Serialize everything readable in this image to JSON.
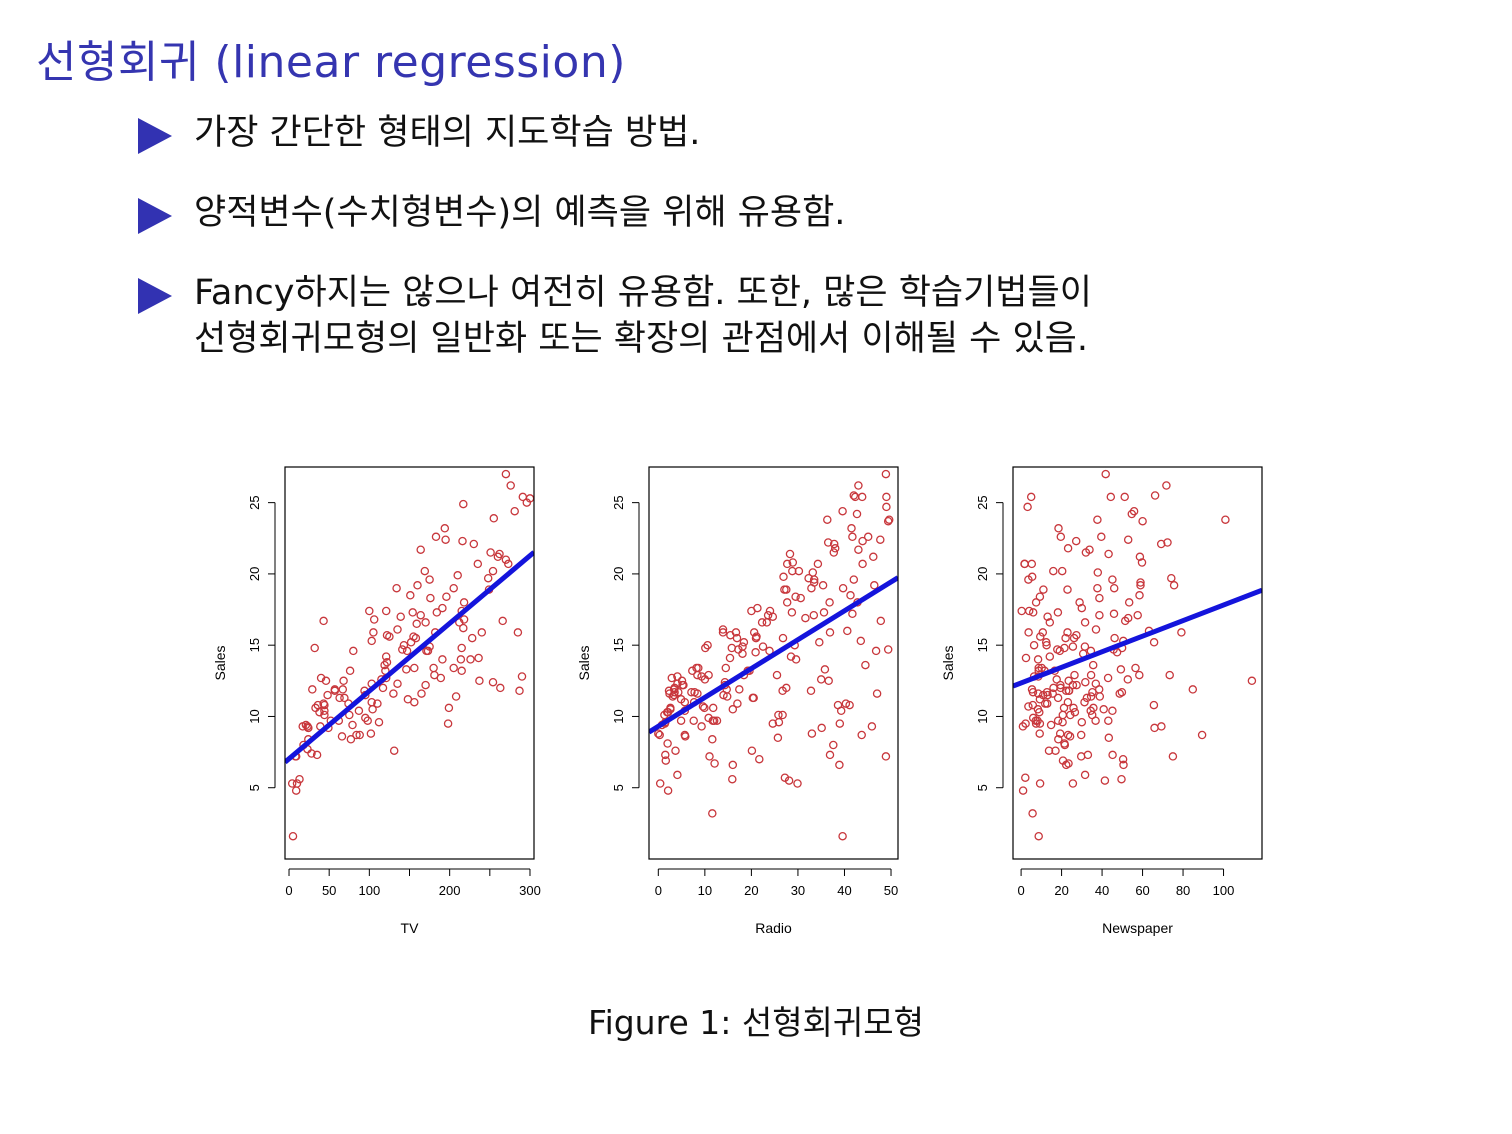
{
  "slide": {
    "title": "선형회귀 (linear regression)",
    "bullets": [
      {
        "lines": [
          "가장 간단한 형태의 지도학습 방법."
        ]
      },
      {
        "lines": [
          "양적변수(수치형변수)의 예측을 위해 유용함."
        ]
      },
      {
        "lines": [
          "Fancy하지는 않으나 여전히 유용함. 또한, 많은 학습기법들이",
          "선형회귀모형의 일반화 또는 확장의 관점에서 이해될 수 있음."
        ]
      }
    ],
    "caption": "Figure 1: 선형회귀모형"
  },
  "colors": {
    "title": "#3535b0",
    "marker": "#3232b2",
    "points": "#c8373c",
    "fit_line": "#1414dc"
  },
  "chart_data": [
    {
      "type": "scatter",
      "xlabel": "TV",
      "ylabel": "Sales",
      "xlim": [
        -5,
        305
      ],
      "ylim": [
        0,
        27.5
      ],
      "xticks": [
        0,
        50,
        100,
        150,
        200,
        250,
        300
      ],
      "xtick_labels": [
        "0",
        "50",
        "100",
        "",
        "200",
        "",
        "300"
      ],
      "yticks": [
        5,
        10,
        15,
        20,
        25
      ],
      "fit_line": {
        "intercept": 7.03,
        "slope": 0.0475
      },
      "x": [
        230,
        44,
        17,
        151,
        181,
        9,
        57,
        120,
        9,
        199,
        66,
        215,
        24,
        98,
        205,
        195,
        68,
        281,
        69,
        147,
        218,
        237,
        13,
        228,
        62,
        263,
        143,
        240,
        249,
        104,
        262,
        29,
        112,
        121,
        198,
        290,
        4,
        8,
        75,
        165,
        125,
        131,
        141,
        23,
        48,
        291,
        33,
        266,
        95,
        215,
        270,
        63,
        260,
        80,
        46,
        251,
        139,
        169,
        217,
        205,
        164,
        173,
        121,
        287,
        255,
        102,
        38,
        159,
        110,
        196,
        175,
        183,
        273,
        285,
        218,
        170,
        121,
        57,
        39,
        88,
        5,
        175,
        180,
        122,
        103,
        94,
        84,
        43,
        212,
        184,
        40,
        270,
        77,
        300,
        32,
        95,
        155,
        106,
        191,
        115,
        74,
        296,
        215,
        276,
        191,
        182,
        134,
        156,
        214,
        21,
        146,
        235,
        254,
        152,
        10,
        52,
        28,
        24,
        67,
        76,
        35,
        226,
        156,
        254,
        105,
        100,
        248,
        189,
        210,
        135,
        194,
        23,
        117,
        24,
        36,
        154,
        44,
        135,
        148,
        103,
        208,
        87,
        158,
        49,
        18,
        122,
        217,
        164,
        170,
        79,
        160,
        119,
        44,
        130,
        216,
        171,
        103,
        176,
        236,
        43
      ],
      "y": [
        22.1,
        10.4,
        9.3,
        18.5,
        12.9,
        7.2,
        11.8,
        13.2,
        4.8,
        10.6,
        8.6,
        17.4,
        9.2,
        9.7,
        19,
        22.4,
        12.5,
        24.4,
        11.3,
        14.6,
        18,
        12.5,
        5.6,
        15.5,
        9.7,
        12,
        15,
        15.9,
        18.9,
        10.5,
        21.4,
        11.9,
        9.6,
        17.4,
        9.5,
        12.8,
        5.3,
        7.2,
        10.1,
        11.6,
        15.6,
        7.6,
        14.7,
        7.7,
        11.5,
        25.4,
        10.6,
        16.7,
        9.9,
        14.8,
        27,
        11.3,
        21.2,
        14.6,
        12.5,
        21.5,
        17,
        20.2,
        24.9,
        13.4,
        21.7,
        14.6,
        12.7,
        11.8,
        23.9,
        8.8,
        10.3,
        16.5,
        10.9,
        18.4,
        19.6,
        22.6,
        20.7,
        15.9,
        16.8,
        12.2,
        14.2,
        11.9,
        9.3,
        8.7,
        1.6,
        14.9,
        13.4,
        13.8,
        12.3,
        11.8,
        8.7,
        10.9,
        16.6,
        17.3,
        12.7,
        21,
        8.4,
        25.3,
        14.8,
        11.5,
        15.6,
        16.8,
        17.6,
        12.6,
        10.9,
        25,
        13.2,
        26.2,
        14,
        15.9,
        19,
        11,
        14,
        9.4,
        13.3,
        20.7,
        12.4,
        15.2,
        5.3,
        9.7,
        7.4,
        9.2,
        11.9,
        13.2,
        7.3,
        14,
        13.4,
        20.2,
        15.9,
        17.4,
        19.7,
        12.7,
        19.9,
        12.3,
        23.2,
        9.3,
        12,
        8.4,
        10.8,
        17.3,
        10.8,
        16.1,
        11.2,
        15.3,
        11.4,
        10.4,
        15.5,
        9.2,
        8,
        15.7,
        16.2,
        17.1,
        16.6,
        9.4,
        19.2,
        13.6,
        10.1,
        11.6,
        22.3,
        14.6,
        11,
        18.3,
        14.1,
        16.7
      ]
    },
    {
      "type": "scatter",
      "xlabel": "Radio",
      "ylabel": "Sales",
      "xlim": [
        -2,
        51.5
      ],
      "ylim": [
        0,
        27.5
      ],
      "xticks": [
        0,
        10,
        20,
        30,
        40,
        50
      ],
      "xtick_labels": [
        "0",
        "10",
        "20",
        "30",
        "40",
        "50"
      ],
      "yticks": [
        5,
        10,
        15,
        20,
        25
      ],
      "fit_line": {
        "intercept": 9.31,
        "slope": 0.2025
      },
      "x": [
        37.8,
        39.3,
        45.9,
        41.3,
        10.8,
        48.9,
        32.8,
        19.6,
        2.1,
        2.6,
        5.8,
        24,
        35.1,
        7.6,
        32.9,
        47.7,
        36.6,
        39.6,
        20.5,
        23.9,
        27.7,
        5.1,
        15.9,
        16.9,
        12.6,
        3.5,
        29.3,
        16.7,
        27.1,
        16,
        28.3,
        17.4,
        1.5,
        20,
        1.4,
        4.1,
        43.8,
        49.4,
        26.7,
        37.7,
        22.3,
        33.4,
        27.7,
        8.4,
        25.7,
        22.5,
        9.9,
        41.5,
        15.8,
        11.7,
        3.1,
        9.6,
        41.7,
        46.2,
        28.8,
        49.4,
        28.1,
        19.2,
        49.6,
        29.5,
        2,
        42.7,
        15.5,
        29.6,
        42.8,
        9.3,
        24.6,
        14.5,
        27.5,
        43.9,
        30.6,
        14.3,
        33,
        5.7,
        24.6,
        43.7,
        1.6,
        28.5,
        29.9,
        7.7,
        26.7,
        4.1,
        20.3,
        44.5,
        43,
        18.4,
        27.5,
        40.6,
        25.5,
        47.8,
        4.9,
        1.5,
        33.5,
        36.5,
        14,
        31.6,
        3.5,
        21,
        42.3,
        41.7,
        4.3,
        36.3,
        10.1,
        17.2,
        34.3,
        46.4,
        11,
        0.3,
        0.4,
        26.9,
        8.2,
        38,
        15.4,
        20.6,
        46.8,
        35,
        14.3,
        0.8,
        36.9,
        16,
        26.8,
        21.7,
        2.4,
        34.6,
        32.3,
        11.8,
        38.9,
        0,
        49,
        12,
        39.6,
        2.9,
        27.2,
        33.5,
        38.6,
        47,
        39,
        28.9,
        25.9,
        43.9,
        17,
        35.4,
        33.2,
        5.7,
        14.8,
        1.9,
        7.3,
        49,
        40.3,
        25.8,
        13.9,
        8.4,
        23.3,
        39.7,
        21.1,
        11.6,
        43.5,
        1.3,
        36.9,
        18.4,
        18.1,
        35.8,
        18.1,
        36.8,
        14.7,
        3.4,
        37.6,
        5.2,
        23.6,
        10.6,
        11.6,
        20.9,
        20.1,
        7.1,
        3.4,
        48.9,
        30.2,
        7.8,
        2.3,
        10,
        2.6,
        5.4,
        5.7,
        43,
        21.3,
        45.1,
        2.1,
        28.7,
        13.9,
        12.1,
        41.1,
        10.8,
        4.1,
        42,
        35.6,
        3.7,
        4.9,
        9.3,
        42,
        8.6
      ],
      "y": [
        22.1,
        10.4,
        9.3,
        18.5,
        12.9,
        7.2,
        11.8,
        13.2,
        4.8,
        10.6,
        8.6,
        17.4,
        9.2,
        9.7,
        19,
        22.4,
        12.5,
        24.4,
        11.3,
        14.6,
        18,
        12.5,
        5.6,
        15.5,
        9.7,
        12,
        15,
        15.9,
        18.9,
        10.5,
        21.4,
        11.9,
        9.6,
        17.4,
        9.5,
        12.8,
        25.4,
        14.7,
        10.1,
        21.5,
        16.6,
        17.1,
        20.7,
        12.9,
        8.5,
        14.9,
        10.6,
        23.2,
        14.8,
        9.7,
        11.4,
        10.7,
        22.6,
        21.2,
        20.2,
        23.7,
        5.5,
        13.2,
        23.8,
        18.4,
        8.1,
        24.2,
        15.7,
        14,
        18,
        9.3,
        9.5,
        13.4,
        18.9,
        22.3,
        18.3,
        12.4,
        8.8,
        11,
        17,
        8.7,
        6.9,
        14.2,
        5.3,
        11,
        11.8,
        12.3,
        11.3,
        13.6,
        21.7,
        15.2,
        12,
        16,
        12.9,
        16.7,
        11.2,
        7.3,
        19.4,
        22.2,
        11.5,
        16.9,
        11.7,
        15.5,
        25.4,
        17.2,
        11.7,
        23.8,
        14.8,
        14.7,
        20.7,
        19.2,
        7.2,
        8.7,
        5.3,
        19.8,
        13.4,
        21.8,
        14.1,
        15.9,
        14.6,
        12.6,
        12.2,
        9.4,
        15.9,
        6.6,
        15.5,
        7,
        11.6,
        15.2,
        19.7,
        10.6,
        6.6,
        8.8,
        24.7,
        9.7,
        1.6,
        12.7,
        5.7,
        19.6,
        10.8,
        11.6,
        9.5,
        20.8,
        9.6,
        20.7,
        10.9,
        19.2,
        20.1,
        10.4,
        11.4,
        10.3,
        13.2,
        25.4,
        10.9,
        10.1,
        16.1,
        11.6,
        16.6,
        19,
        15.6,
        3.2,
        15.3,
        10.1,
        7.3,
        12.9,
        14.4,
        13.3,
        14.9,
        18,
        11.9,
        11.9,
        8,
        12.2,
        17.1,
        15,
        8.4,
        14.5,
        7.6,
        11.7,
        11.5,
        27,
        20.2,
        11.7,
        11.8,
        12.6,
        10.5,
        12.2,
        8.7,
        26.2,
        17.6,
        22.6,
        10.3,
        17.3,
        15.9,
        6.7,
        10.8,
        9.9,
        5.9,
        19.6,
        17.3,
        7.6,
        9.7,
        12.8,
        25.5,
        13.4
      ]
    },
    {
      "type": "scatter",
      "xlabel": "Newspaper",
      "ylabel": "Sales",
      "xlim": [
        -4,
        119
      ],
      "ylim": [
        0,
        27.5
      ],
      "xticks": [
        0,
        20,
        40,
        60,
        80,
        100
      ],
      "xtick_labels": [
        "0",
        "20",
        "40",
        "60",
        "80",
        "100"
      ],
      "yticks": [
        5,
        10,
        15,
        20,
        25
      ],
      "fit_line": {
        "intercept": 12.35,
        "slope": 0.0547
      },
      "x": [
        69.2,
        45.1,
        69.3,
        58.5,
        58.4,
        75,
        23.5,
        11.6,
        1,
        21.2,
        24.2,
        4,
        65.9,
        7.2,
        46,
        52.9,
        114,
        55.8,
        18.3,
        19.1,
        53.4,
        23.5,
        49.6,
        26.2,
        18.3,
        19.5,
        12.6,
        22.9,
        22.9,
        40.8,
        43.2,
        38.6,
        30,
        0.3,
        7.4,
        8.5,
        5,
        45.7,
        35.1,
        32,
        31.6,
        38.7,
        1.8,
        26.4,
        43.3,
        31.5,
        35.7,
        18.5,
        49.9,
        36.8,
        34.6,
        3.6,
        39.6,
        58.7,
        15.9,
        60,
        41.4,
        16.6,
        37.7,
        9.3,
        21.4,
        54.7,
        27.3,
        8.4,
        28.9,
        0.9,
        2.2,
        10.2,
        11,
        27.2,
        38.7,
        31.7,
        19.3,
        31.3,
        13.1,
        89.4,
        20.7,
        14.2,
        9.4,
        23.1,
        22.3,
        36.9,
        32.5,
        35.6,
        33.8,
        65.7,
        16,
        63.2,
        73.4,
        51.4,
        9.3,
        33,
        59,
        72.3,
        10.9,
        52.9,
        5.9,
        22,
        51.2,
        45.9,
        49.8,
        100.9,
        21.4,
        17.9,
        5.3,
        59,
        29.7,
        23.2,
        25.6,
        5.5,
        56.5,
        23.2,
        2.4,
        10.7,
        34.5,
        52.7,
        25.6,
        14.8,
        79.2,
        22.3,
        46.2,
        50.4,
        15.6,
        12.4,
        74.2,
        25.9,
        50.6,
        9.2,
        3.2,
        43.1,
        8.7,
        43,
        2.1,
        45.1,
        65.6,
        8.5,
        9.3,
        59.7,
        20.5,
        1.7,
        12.9,
        75.6,
        37.9,
        34.4,
        38.9,
        9,
        8.7,
        44.3,
        11.9,
        20.6,
        37,
        48.7,
        14.2,
        37.7,
        9.5,
        5.7,
        50.5,
        24.3,
        45.2,
        34.6,
        30.7,
        49.3,
        25.6,
        7.4,
        5.4,
        84.8,
        21.6,
        19.4,
        57.6,
        6.4,
        18.4,
        47.4,
        17,
        12.8,
        13.1,
        41.8,
        20.3,
        35.2,
        23.7,
        17.6,
        8.3,
        27.4,
        29.7,
        71.8,
        30,
        19.6,
        26.6,
        18.2,
        3.7,
        23.4,
        5.8,
        6,
        31.6,
        3.6,
        6,
        13.8,
        8.1,
        6.4,
        66.2,
        8.7
      ],
      "y": [
        22.1,
        10.4,
        9.3,
        18.5,
        12.9,
        7.2,
        11.8,
        13.2,
        4.8,
        10.6,
        8.6,
        17.4,
        9.2,
        9.7,
        19,
        22.4,
        12.5,
        24.4,
        11.3,
        14.6,
        18,
        12.5,
        5.6,
        15.5,
        9.7,
        12,
        15,
        15.9,
        18.9,
        10.5,
        21.4,
        11.9,
        9.6,
        17.4,
        9.5,
        12.8,
        25.4,
        14.7,
        10.1,
        21.5,
        16.6,
        17.1,
        20.7,
        12.9,
        8.5,
        14.9,
        10.6,
        23.2,
        14.8,
        9.7,
        11.4,
        10.7,
        22.6,
        21.2,
        20.2,
        23.7,
        5.5,
        13.2,
        23.8,
        18.4,
        8.1,
        24.2,
        15.7,
        14,
        18,
        9.3,
        9.5,
        13.4,
        18.9,
        22.3,
        18.3,
        12.4,
        8.8,
        11,
        17,
        8.7,
        6.9,
        14.2,
        5.3,
        11,
        11.8,
        12.3,
        11.3,
        13.6,
        21.7,
        15.2,
        12,
        16,
        12.9,
        16.7,
        11.2,
        7.3,
        19.4,
        22.2,
        11.5,
        16.9,
        11.7,
        15.5,
        25.4,
        17.2,
        11.7,
        23.8,
        14.8,
        14.7,
        20.7,
        19.2,
        7.2,
        8.7,
        5.3,
        19.8,
        13.4,
        21.8,
        14.1,
        15.9,
        14.6,
        12.6,
        12.2,
        9.4,
        15.9,
        6.6,
        15.5,
        7,
        11.6,
        15.2,
        19.7,
        10.6,
        6.6,
        8.8,
        24.7,
        9.7,
        1.6,
        12.7,
        5.7,
        19.6,
        10.8,
        11.6,
        9.5,
        20.8,
        9.6,
        20.7,
        10.9,
        19.2,
        20.1,
        10.4,
        11.4,
        10.3,
        13.2,
        25.4,
        10.9,
        10.1,
        16.1,
        11.6,
        16.6,
        19,
        15.6,
        3.2,
        15.3,
        10.1,
        7.3,
        12.9,
        14.4,
        13.3,
        14.9,
        18,
        11.9,
        11.9,
        8,
        12.2,
        17.1,
        15,
        8.4,
        14.5,
        7.6,
        11.7,
        11.5,
        27,
        20.2,
        11.7,
        11.8,
        12.6,
        10.5,
        12.2,
        8.7,
        26.2,
        17.6,
        22.6,
        10.3,
        17.3,
        15.9,
        6.7,
        10.8,
        9.9,
        5.9,
        19.6,
        17.3,
        7.6,
        9.7,
        12.8,
        25.5,
        13.4
      ]
    }
  ]
}
